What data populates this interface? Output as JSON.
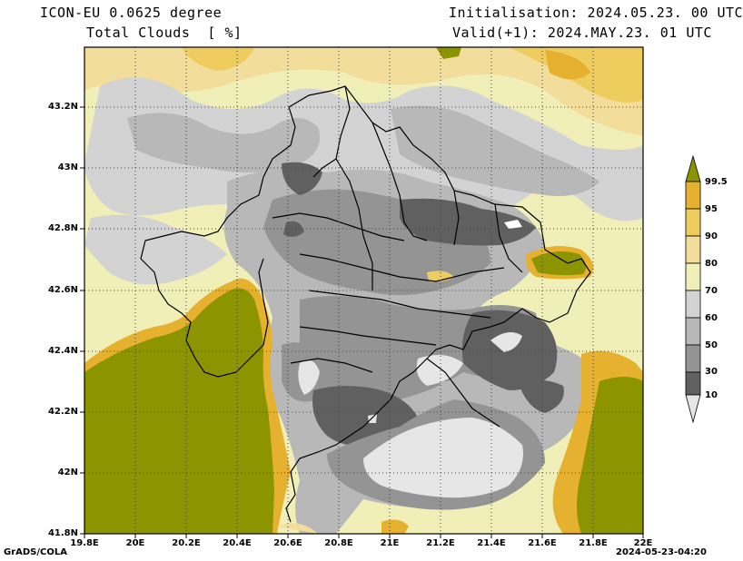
{
  "header": {
    "title_line1": "ICON-EU 0.0625 degree",
    "title_line2": "Total Clouds  [ %]",
    "init": "Initialisation: 2024.05.23. 00 UTC",
    "valid": "Valid(+1): 2024.MAY.23. 01 UTC"
  },
  "axes": {
    "lat_labels": [
      "43.2N",
      "43N",
      "42.8N",
      "42.6N",
      "42.4N",
      "42.2N",
      "42N",
      "41.8N"
    ],
    "lon_labels": [
      "19.8E",
      "20E",
      "20.2E",
      "20.4E",
      "20.6E",
      "20.8E",
      "21E",
      "21.2E",
      "21.4E",
      "21.6E",
      "21.8E",
      "22E"
    ]
  },
  "colorbar": {
    "labels": [
      "99.5",
      "95",
      "90",
      "80",
      "70",
      "60",
      "50",
      "30",
      "10"
    ],
    "colors": [
      "#8c9400",
      "#e6b12e",
      "#eecd5e",
      "#f2dd9a",
      "#f0efb8",
      "#d3d3d3",
      "#b8b8b8",
      "#949494",
      "#606060",
      "#e6e6e6"
    ]
  },
  "footer": {
    "left": "GrADS/COLA",
    "right": "2024-05-23-04:20"
  }
}
